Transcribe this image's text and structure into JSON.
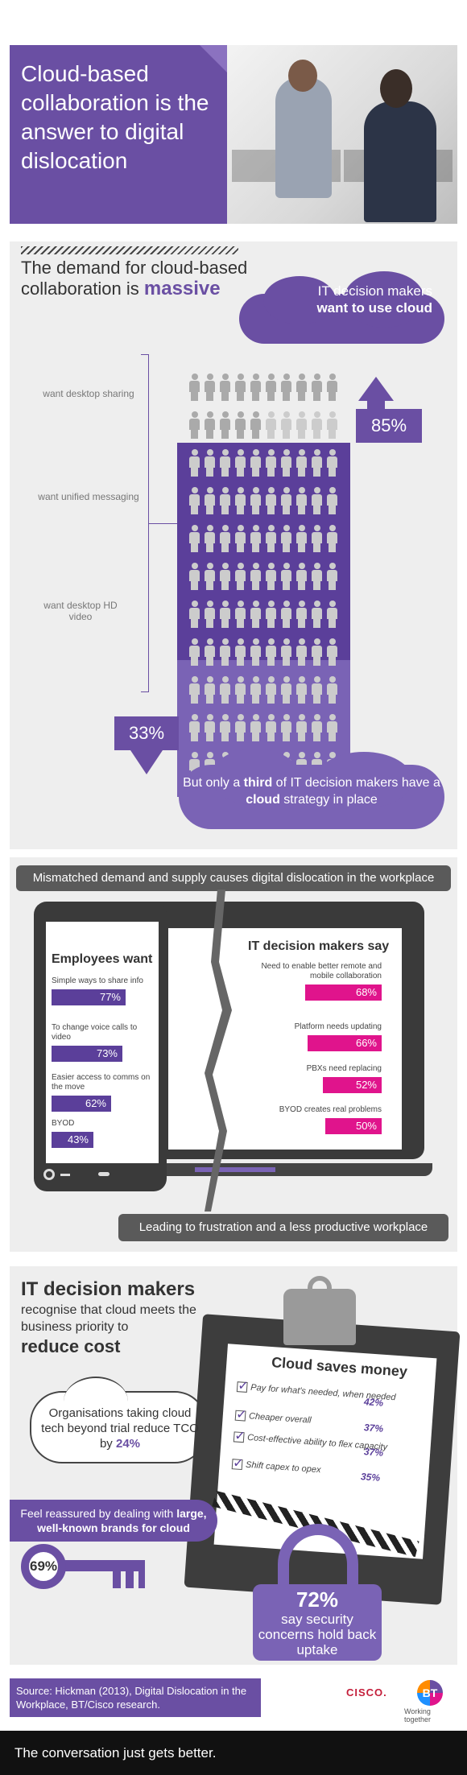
{
  "header": {
    "title": "Cloud-based collaboration is the answer to digital dislocation"
  },
  "demand": {
    "title_pre": "The demand for cloud-based collaboration is ",
    "title_emph": "massive",
    "cloud_top_line1": "IT decision makers",
    "cloud_top_line2": "want to use cloud",
    "labels": [
      "want desktop sharing",
      "want unified messaging",
      "want desktop HD video"
    ],
    "pct_want": "85%",
    "pct_strategy": "33%",
    "cloud_bottom_pre": "But only a ",
    "cloud_bottom_third": "third",
    "cloud_bottom_mid": " of IT decision makers have a ",
    "cloud_bottom_cloud": "cloud",
    "cloud_bottom_post": " strategy in place"
  },
  "mismatch": {
    "banner": "Mismatched demand and supply causes digital dislocation in the workplace",
    "footer": "Leading to frustration and a less productive workplace",
    "employees_title": "Employees want",
    "employees": [
      {
        "label": "Simple ways to share info",
        "value": "77%",
        "fraction": 0.77
      },
      {
        "label": "To change voice calls to video",
        "value": "73%",
        "fraction": 0.73
      },
      {
        "label": "Easier access to comms on the move",
        "value": "62%",
        "fraction": 0.62
      },
      {
        "label": "BYOD",
        "value": "43%",
        "fraction": 0.43
      }
    ],
    "it_title": "IT decision makers say",
    "it": [
      {
        "label": "Need to enable better remote and mobile collaboration",
        "value": "68%",
        "fraction": 0.68
      },
      {
        "label": "Platform needs updating",
        "value": "66%",
        "fraction": 0.66
      },
      {
        "label": "PBXs need replacing",
        "value": "52%",
        "fraction": 0.52
      },
      {
        "label": "BYOD creates real problems",
        "value": "50%",
        "fraction": 0.5
      }
    ]
  },
  "cost": {
    "heading_big": "IT decision makers",
    "heading_mid": "recognise that cloud meets the business priority to",
    "heading_cost": "reduce cost",
    "cloud_pre": "Organisations taking cloud tech beyond trial reduce TCO by ",
    "cloud_pct": "24%",
    "board_title": "Cloud saves money",
    "items": [
      {
        "label": "Pay for what's needed, when needed",
        "value": "42%"
      },
      {
        "label": "Cheaper overall",
        "value": "37%"
      },
      {
        "label": "Cost-effective ability to flex capacity",
        "value": "37%"
      },
      {
        "label": "Shift capex to opex",
        "value": "35%"
      }
    ],
    "reassured_pre": "Feel reassured by dealing with ",
    "reassured_emph": "large, well-known brands for cloud",
    "reassured_pct": "69%",
    "lock_pct": "72%",
    "lock_text": "say security concerns hold back uptake"
  },
  "footer": {
    "source": "Source: Hickman (2013), Digital Dislocation in the Workplace, BT/Cisco research.",
    "cisco": "CISCO.",
    "bt": "BT",
    "bt_tag": "Working together",
    "tagline": "The conversation just gets better."
  },
  "colors": {
    "purple": "#6a4fa3",
    "magenta": "#e0148c",
    "dark": "#3a3a3a"
  }
}
